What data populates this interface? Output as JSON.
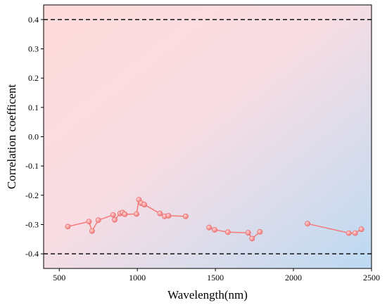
{
  "chart_data": {
    "type": "line",
    "xlabel": "Wavelength(nm)",
    "ylabel": "Correlation coefficent",
    "xlim": [
      400,
      2500
    ],
    "ylim": [
      -0.45,
      0.45
    ],
    "xticks": [
      500,
      1000,
      1500,
      2000,
      2500
    ],
    "yticks": [
      0.4,
      0.3,
      0.2,
      0.1,
      0.0,
      -0.1,
      -0.2,
      -0.3,
      -0.4
    ],
    "ytick_labels": [
      "0.4",
      "0.3",
      "0.2",
      "0.1",
      "0.0",
      "-0.1",
      "-0.2",
      "-0.3",
      "-0.4"
    ],
    "reference_lines": [
      0.4,
      -0.4
    ],
    "background": "diagonal gradient pink (top-left) to light blue (bottom-right)",
    "series": [
      {
        "color": "#f47a7a",
        "segments": [
          [
            [
              555,
              -0.307
            ],
            [
              690,
              -0.29
            ],
            [
              710,
              -0.322
            ],
            [
              750,
              -0.285
            ],
            [
              845,
              -0.267
            ],
            [
              855,
              -0.284
            ],
            [
              890,
              -0.262
            ],
            [
              905,
              -0.259
            ],
            [
              920,
              -0.265
            ],
            [
              995,
              -0.264
            ],
            [
              1010,
              -0.215
            ],
            [
              1025,
              -0.227
            ],
            [
              1045,
              -0.232
            ],
            [
              1145,
              -0.262
            ],
            [
              1175,
              -0.272
            ],
            [
              1200,
              -0.27
            ],
            [
              1310,
              -0.272
            ]
          ],
          [
            [
              1460,
              -0.31
            ],
            [
              1495,
              -0.318
            ],
            [
              1580,
              -0.326
            ],
            [
              1710,
              -0.328
            ],
            [
              1735,
              -0.348
            ],
            [
              1785,
              -0.325
            ]
          ],
          [
            [
              2090,
              -0.297
            ],
            [
              2355,
              -0.329
            ],
            [
              2395,
              -0.329
            ],
            [
              2435,
              -0.316
            ]
          ]
        ]
      }
    ]
  },
  "colors": {
    "line": "#f47a7a",
    "marker": "#f47a7a",
    "bg_top_left": "#ffdcdc",
    "bg_bottom_right": "#bcdaf2"
  }
}
